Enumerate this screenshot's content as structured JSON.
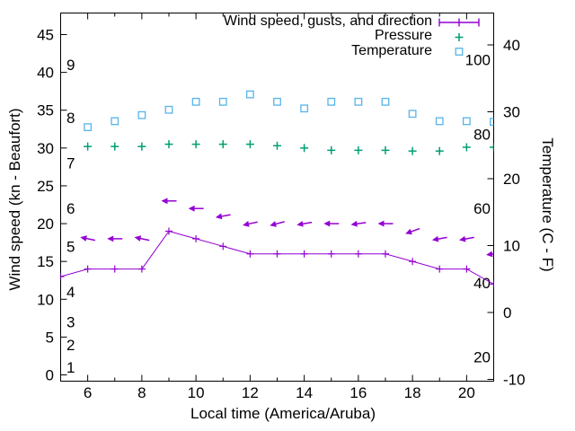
{
  "chart_data": {
    "type": "line",
    "title": "",
    "xlabel": "Local time (America/Aruba)",
    "ylabel": "Wind speed (kn - Beaufort)",
    "y2label": "Temperature (C - F)",
    "xlim": [
      5,
      21
    ],
    "ylim_left_kn": [
      0,
      48
    ],
    "ylim_right_c": [
      -10,
      45
    ],
    "grid": false,
    "legend_position": "top-right-inside",
    "x_major_ticks": [
      6,
      8,
      10,
      12,
      14,
      16,
      18,
      20
    ],
    "x_minor_ticks": [
      5,
      7,
      9,
      11,
      13,
      15,
      17,
      19,
      21
    ],
    "y_left_ticks": [
      0,
      5,
      10,
      15,
      20,
      25,
      30,
      35,
      40,
      45
    ],
    "y_right_ticks": [
      -10,
      0,
      10,
      20,
      30,
      40
    ],
    "inside_labels": {
      "beaufort": [
        {
          "text": "1",
          "kn": 1
        },
        {
          "text": "2",
          "kn": 4
        },
        {
          "text": "3",
          "kn": 7
        },
        {
          "text": "4",
          "kn": 11
        },
        {
          "text": "5",
          "kn": 17
        },
        {
          "text": "6",
          "kn": 22
        },
        {
          "text": "7",
          "kn": 28
        },
        {
          "text": "8",
          "kn": 34
        },
        {
          "text": "9",
          "kn": 41
        }
      ],
      "fahrenheit": [
        {
          "text": "100",
          "f": 100
        },
        {
          "text": "80",
          "f": 80
        },
        {
          "text": "60",
          "f": 60
        },
        {
          "text": "40",
          "f": 40
        },
        {
          "text": "20",
          "f": 20
        }
      ]
    },
    "legend": [
      {
        "label": "Wind speed, gusts, and direction",
        "color": "#9400d3",
        "marker": "errorbar-line"
      },
      {
        "label": "Pressure",
        "color": "#009e73",
        "marker": "plus"
      },
      {
        "label": "Temperature",
        "color": "#56b4e9",
        "marker": "open-square"
      }
    ],
    "series": {
      "wind_speed": {
        "name": "Wind speed",
        "color": "#9400d3",
        "x": [
          5,
          6,
          7,
          8,
          9,
          10,
          11,
          12,
          13,
          14,
          15,
          16,
          17,
          18,
          19,
          20,
          21
        ],
        "y_kn": [
          13,
          14,
          14,
          14,
          19,
          18,
          17,
          16,
          16,
          16,
          16,
          16,
          16,
          15,
          14,
          14,
          12
        ]
      },
      "gusts": {
        "name": "Gusts and direction",
        "color": "#9400d3",
        "x": [
          6,
          7,
          8,
          9,
          10,
          11,
          12,
          13,
          14,
          15,
          16,
          17,
          18,
          19,
          20,
          21
        ],
        "y_kn": [
          18,
          18,
          18,
          23,
          22,
          21,
          20,
          20,
          20,
          20,
          20,
          20,
          19,
          18,
          18,
          16
        ],
        "arrow_deg": [
          192,
          180,
          192,
          180,
          180,
          170,
          168,
          165,
          170,
          180,
          172,
          180,
          160,
          170,
          170,
          172
        ]
      },
      "pressure": {
        "name": "Pressure",
        "color": "#009e73",
        "x": [
          6,
          7,
          8,
          9,
          10,
          11,
          12,
          13,
          14,
          15,
          16,
          17,
          18,
          19,
          20,
          21
        ],
        "y_plotted_kn": [
          30.2,
          30.2,
          30.2,
          30.5,
          30.5,
          30.5,
          30.5,
          30.3,
          30.0,
          29.7,
          29.7,
          29.7,
          29.6,
          29.6,
          30.1,
          30.1
        ]
      },
      "temperature": {
        "name": "Temperature",
        "color": "#56b4e9",
        "x": [
          6,
          7,
          8,
          9,
          10,
          11,
          12,
          13,
          14,
          15,
          16,
          17,
          18,
          19,
          20,
          21
        ],
        "y_c": [
          27.7,
          28.6,
          29.5,
          30.3,
          31.5,
          31.5,
          32.6,
          31.5,
          30.5,
          31.5,
          31.5,
          31.5,
          29.7,
          28.6,
          28.6,
          28.5
        ]
      }
    },
    "colors": {
      "wind": "#9400d3",
      "pressure": "#009e73",
      "temperature": "#56b4e9",
      "axis": "#000000",
      "background": "#ffffff"
    }
  }
}
